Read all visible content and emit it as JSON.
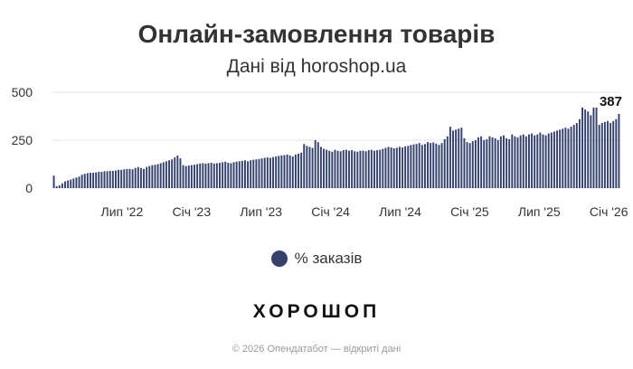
{
  "title": "Онлайн-замовлення товарів",
  "subtitle": "Дані від horoshop.ua",
  "logo_text": "ХОРОШОП",
  "footer": "© 2026 Опендатабот — відкриті дані",
  "colors": {
    "bar": "#34426b",
    "grid": "#e6e6e6",
    "text": "#333333",
    "muted": "#999999"
  },
  "legend": {
    "label": "% заказів",
    "marker": "circle"
  },
  "chart_data": {
    "type": "bar",
    "title": "Онлайн-замовлення товарів",
    "subtitle": "Дані від horoshop.ua",
    "xlabel": "",
    "ylabel": "",
    "ylim": [
      0,
      500
    ],
    "yticks": [
      0,
      250,
      500
    ],
    "grid": "horizontal",
    "legend_position": "bottom",
    "x_start": "2022-01",
    "x_end": "2026-02",
    "xtick_labels": [
      "Лип '22",
      "Січ '23",
      "Лип '23",
      "Січ '24",
      "Лип '24",
      "Січ '25",
      "Лип '25",
      "Січ '26"
    ],
    "annotation": {
      "text": "387",
      "target": "last"
    },
    "series": [
      {
        "name": "% заказів",
        "values": [
          65,
          10,
          15,
          25,
          35,
          40,
          45,
          50,
          55,
          60,
          70,
          75,
          78,
          80,
          80,
          82,
          85,
          85,
          88,
          88,
          90,
          90,
          92,
          95,
          95,
          98,
          100,
          100,
          98,
          105,
          110,
          105,
          100,
          110,
          115,
          120,
          122,
          125,
          130,
          135,
          140,
          145,
          150,
          160,
          170,
          155,
          120,
          115,
          118,
          120,
          122,
          125,
          128,
          130,
          128,
          130,
          132,
          128,
          130,
          132,
          135,
          138,
          132,
          130,
          135,
          138,
          140,
          142,
          145,
          140,
          145,
          148,
          150,
          152,
          155,
          158,
          160,
          158,
          162,
          165,
          168,
          170,
          172,
          175,
          170,
          165,
          175,
          180,
          185,
          230,
          220,
          215,
          210,
          250,
          240,
          215,
          205,
          200,
          195,
          190,
          200,
          195,
          192,
          198,
          200,
          195,
          198,
          192,
          190,
          195,
          195,
          192,
          198,
          200,
          195,
          198,
          200,
          205,
          210,
          215,
          212,
          208,
          210,
          215,
          212,
          218,
          220,
          225,
          228,
          230,
          235,
          225,
          230,
          240,
          235,
          238,
          232,
          225,
          235,
          255,
          270,
          320,
          300,
          305,
          310,
          315,
          260,
          240,
          235,
          245,
          250,
          265,
          270,
          250,
          255,
          270,
          265,
          260,
          250,
          270,
          275,
          260,
          255,
          280,
          270,
          265,
          275,
          280,
          270,
          280,
          285,
          275,
          280,
          290,
          280,
          275,
          285,
          290,
          295,
          300,
          305,
          310,
          315,
          310,
          320,
          330,
          340,
          360,
          420,
          410,
          400,
          380,
          420,
          420,
          330,
          340,
          345,
          350,
          340,
          350,
          360,
          387
        ]
      }
    ]
  }
}
